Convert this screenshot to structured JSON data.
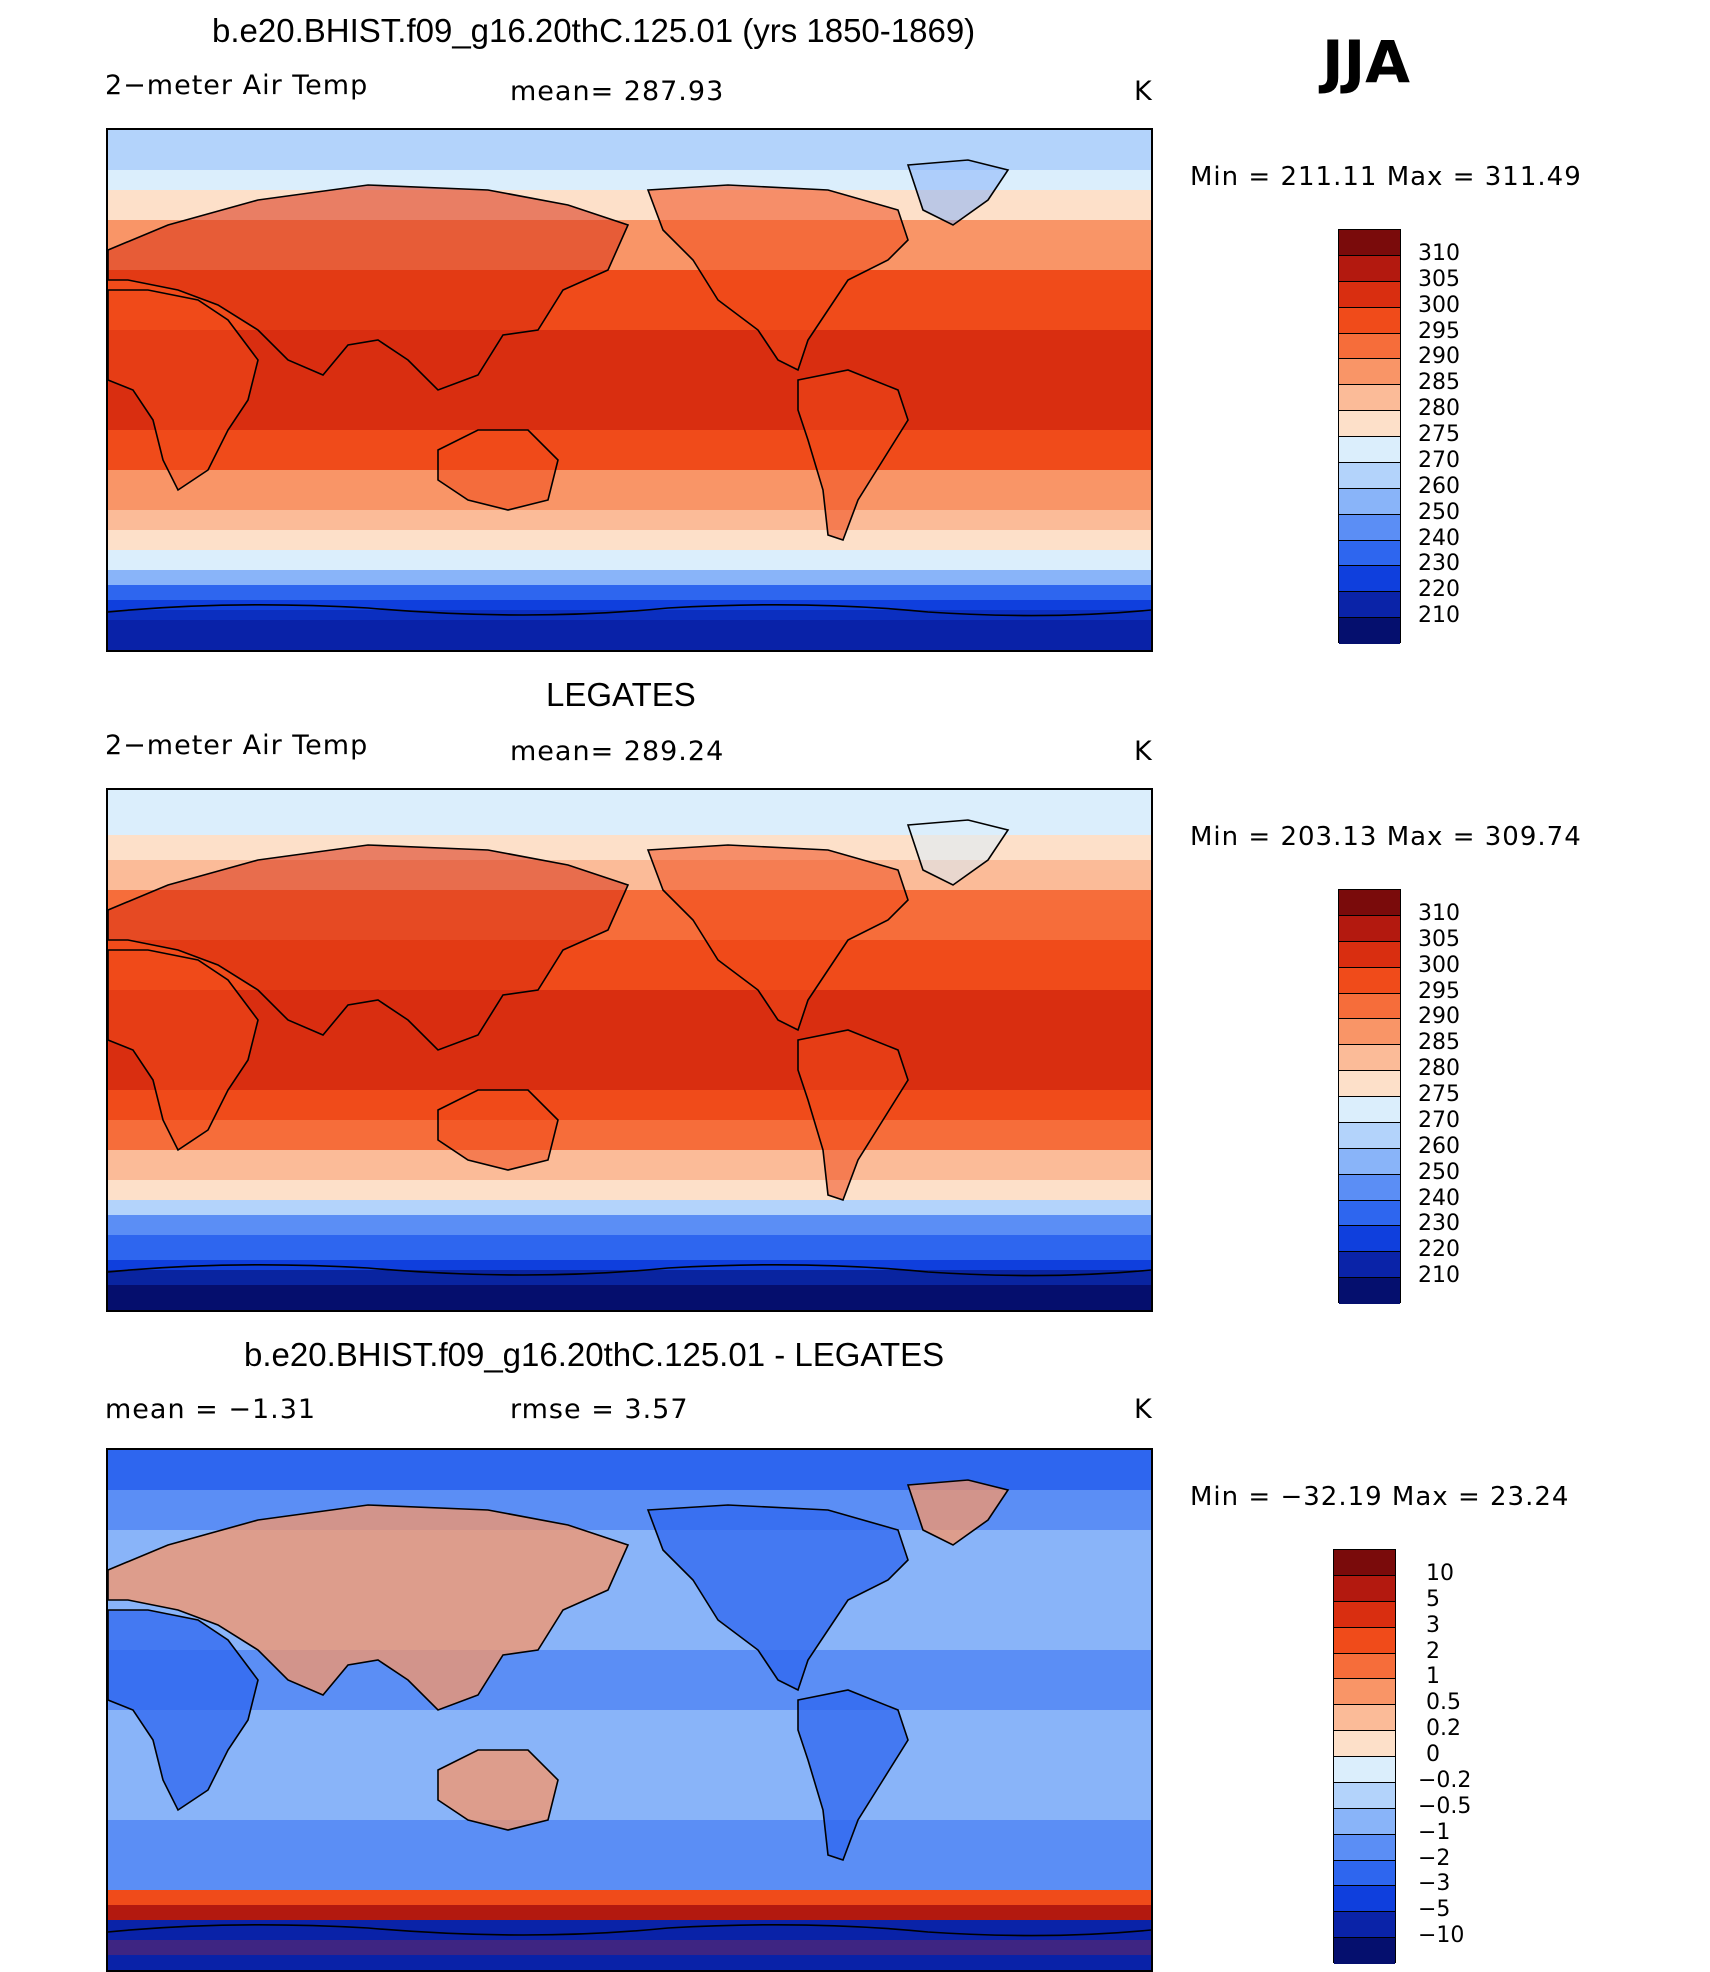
{
  "season": "JJA",
  "units": "K",
  "panels": [
    {
      "title": "b.e20.BHIST.f09_g16.20thC.125.01 (yrs 1850-1869)",
      "left_label": "2−meter Air Temp",
      "mid_label": "mean=  287.93",
      "right_label": "K",
      "minmax": "Min  =  211.11  Max  =  311.49",
      "colorbar": {
        "labels": [
          "310",
          "305",
          "300",
          "295",
          "290",
          "285",
          "280",
          "275",
          "270",
          "260",
          "250",
          "240",
          "230",
          "220",
          "210"
        ],
        "colors": [
          "#7a0b0b",
          "#b3190f",
          "#d92e10",
          "#f04b1a",
          "#f66d3a",
          "#f99567",
          "#fbbb98",
          "#fde0c9",
          "#dbeefc",
          "#b3d3fb",
          "#89b4f9",
          "#5b8ef5",
          "#2e66ef",
          "#0f3fdd",
          "#0a23a8",
          "#050f6e"
        ]
      },
      "kind": "abs"
    },
    {
      "title": "LEGATES",
      "left_label": "2−meter Air Temp",
      "mid_label": "mean=  289.24",
      "right_label": "K",
      "minmax": "Min  =  203.13  Max  =  309.74",
      "colorbar": {
        "labels": [
          "310",
          "305",
          "300",
          "295",
          "290",
          "285",
          "280",
          "275",
          "270",
          "260",
          "250",
          "240",
          "230",
          "220",
          "210"
        ],
        "colors": [
          "#7a0b0b",
          "#b3190f",
          "#d92e10",
          "#f04b1a",
          "#f66d3a",
          "#f99567",
          "#fbbb98",
          "#fde0c9",
          "#dbeefc",
          "#b3d3fb",
          "#89b4f9",
          "#5b8ef5",
          "#2e66ef",
          "#0f3fdd",
          "#0a23a8",
          "#050f6e"
        ]
      },
      "kind": "obs"
    },
    {
      "title": "b.e20.BHIST.f09_g16.20thC.125.01 - LEGATES",
      "left_label": "mean  =    −1.31",
      "mid_label": "rmse  =     3.57",
      "right_label": "K",
      "minmax": "Min  =  −32.19  Max  =    23.24",
      "colorbar": {
        "labels": [
          "10",
          "5",
          "3",
          "2",
          "1",
          "0.5",
          "0.2",
          "0",
          "−0.2",
          "−0.5",
          "−1",
          "−2",
          "−3",
          "−5",
          "−10"
        ],
        "colors": [
          "#7a0b0b",
          "#b3190f",
          "#d92e10",
          "#f04b1a",
          "#f66d3a",
          "#f99567",
          "#fbbb98",
          "#fde0c9",
          "#dbeefc",
          "#b3d3fb",
          "#89b4f9",
          "#5b8ef5",
          "#2e66ef",
          "#0f3fdd",
          "#0a23a8",
          "#050f6e"
        ]
      },
      "kind": "diff"
    }
  ]
}
